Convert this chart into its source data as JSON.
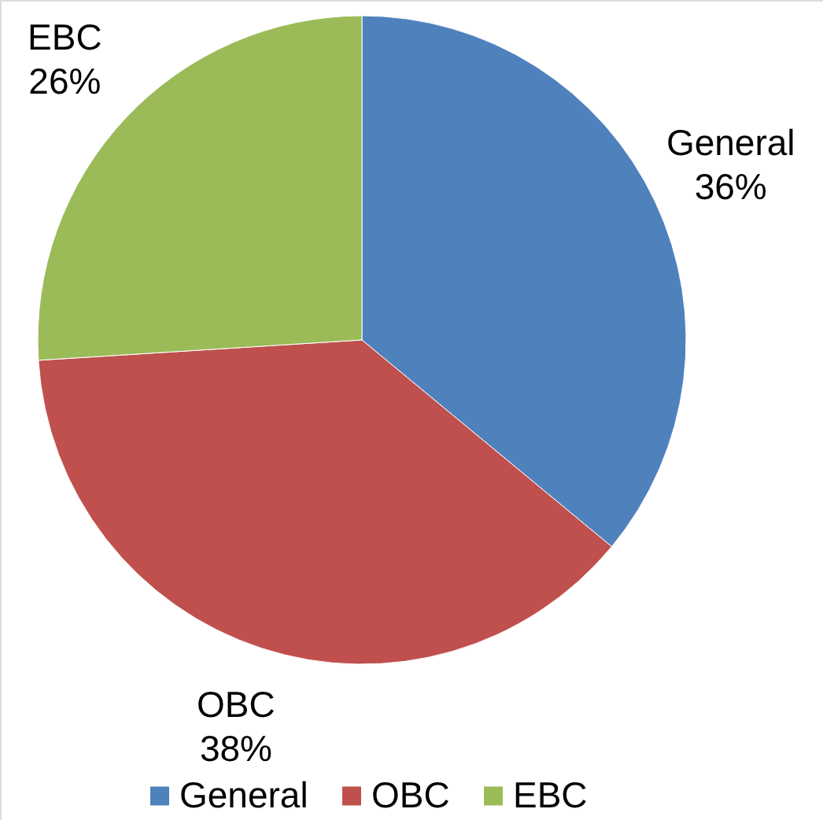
{
  "chart_data": {
    "type": "pie",
    "categories": [
      "General",
      "OBC",
      "EBC"
    ],
    "values": [
      36,
      38,
      26
    ],
    "colors": [
      "#4f81bd",
      "#c0504d",
      "#9bbb59"
    ],
    "value_labels": [
      "36%",
      "38%",
      "26%"
    ],
    "legend": "bottom"
  }
}
